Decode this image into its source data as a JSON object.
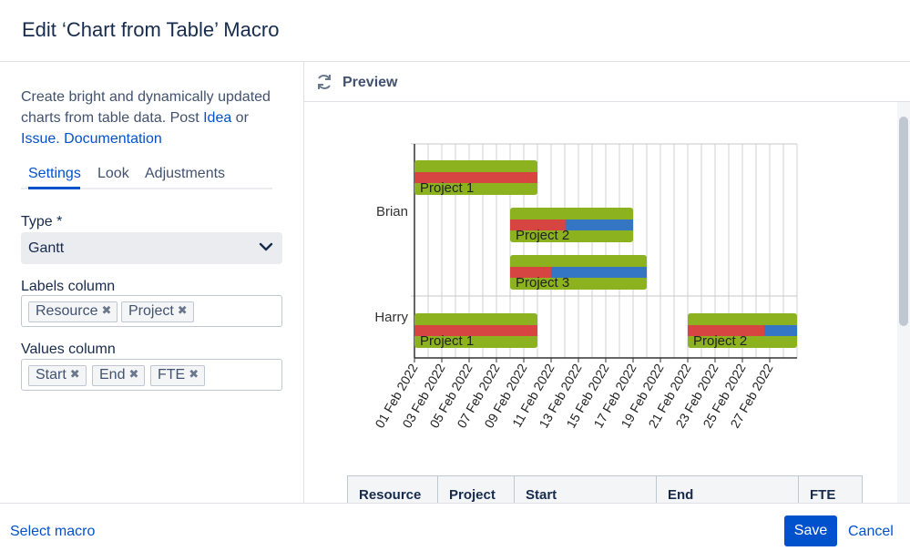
{
  "dialog": {
    "title": "Edit ‘Chart from Table’ Macro"
  },
  "description": {
    "text1": "Create bright and dynamically updated charts from table data. Post ",
    "idea_link": "Idea",
    "text2": " or ",
    "issue_link": "Issue.",
    "doc_link": "Documentation"
  },
  "tabs": [
    {
      "label": "Settings"
    },
    {
      "label": "Look"
    },
    {
      "label": "Adjustments"
    }
  ],
  "type_field": {
    "label": "Type *",
    "value": "Gantt"
  },
  "labels_field": {
    "label": "Labels column",
    "chips": [
      {
        "label": "Resource"
      },
      {
        "label": "Project"
      }
    ]
  },
  "values_field": {
    "label": "Values column",
    "chips": [
      {
        "label": "Start"
      },
      {
        "label": "End"
      },
      {
        "label": "FTE"
      }
    ]
  },
  "preview": {
    "label": "Preview"
  },
  "chart_data": {
    "type": "gantt",
    "categories": [
      "Brian",
      "Harry"
    ],
    "x_ticks": [
      "01 Feb 2022",
      "03 Feb 2022",
      "05 Feb 2022",
      "07 Feb 2022",
      "09 Feb 2022",
      "11 Feb 2022",
      "13 Feb 2022",
      "15 Feb 2022",
      "17 Feb 2022",
      "19 Feb 2022",
      "21 Feb 2022",
      "23 Feb 2022",
      "25 Feb 2022",
      "27 Feb 2022"
    ],
    "x_range_days": [
      1,
      29
    ],
    "tasks": [
      {
        "resource": "Brian",
        "label": "Project 1",
        "start_day": 1,
        "end_day": 10,
        "progress": 1.0
      },
      {
        "resource": "Brian",
        "label": "Project 2",
        "start_day": 8,
        "end_day": 17,
        "progress": 0.45
      },
      {
        "resource": "Brian",
        "label": "Project 3",
        "start_day": 8,
        "end_day": 18,
        "progress": 0.3
      },
      {
        "resource": "Harry",
        "label": "Project 1",
        "start_day": 1,
        "end_day": 10,
        "progress": 1.0
      },
      {
        "resource": "Harry",
        "label": "Project 2",
        "start_day": 21,
        "end_day": 29,
        "progress": 0.7
      }
    ],
    "colors": {
      "bar": "#8db220",
      "progress": "#d64541",
      "remaining": "#3476c4"
    }
  },
  "table": {
    "headers": [
      "Resource",
      "Project",
      "Start",
      "End",
      "FTE"
    ]
  },
  "footer": {
    "select_macro": "Select macro",
    "save": "Save",
    "cancel": "Cancel"
  }
}
